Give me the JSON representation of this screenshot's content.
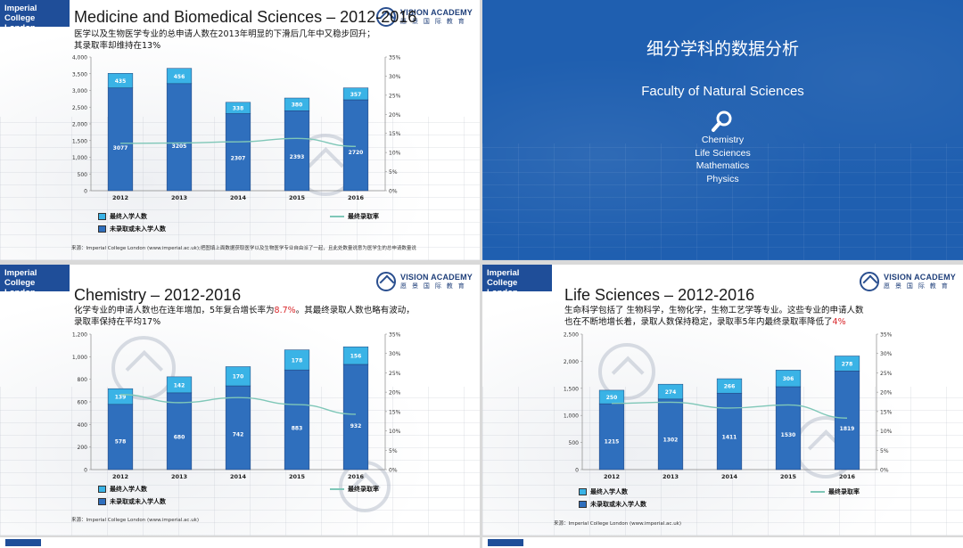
{
  "slides": {
    "medicine": {
      "brand": [
        "Imperial College",
        "London"
      ],
      "logo_en": "VISION ACADEMY",
      "logo_cn": "愿 景 国 际 教 育",
      "title": "Medicine and Biomedical Sciences – 2012-2016",
      "subtitle_line1": "医学以及生物医学专业的总申请人数在2013年明显的下滑后几年中又稳步回升；",
      "subtitle_line2": "其录取率却维持在13%",
      "legend_admitted": "最终入学人数",
      "legend_rejected": "未录取或未入学人数",
      "legend_rate": "最终录取率",
      "source": "来源：Imperial College London (www.imperial.ac.uk);把图填上面数据获取医学以及生物医学专业自由派了一起，且此处数量说意为医学生的总申请数量说"
    },
    "section": {
      "title": "细分学科的数据分析",
      "faculty": "Faculty of Natural Sciences",
      "icon": "magnifier-icon",
      "subjects": [
        "Chemistry",
        "Life Sciences",
        "Mathematics",
        "Physics"
      ]
    },
    "chemistry": {
      "brand": [
        "Imperial College",
        "London"
      ],
      "logo_en": "VISION ACADEMY",
      "logo_cn": "愿 景 国 际 教 育",
      "title": "Chemistry – 2012-2016",
      "subtitle_pre": "化学专业的申请人数也在连年增加，5年复合增长率为",
      "subtitle_hl": "8.7%",
      "subtitle_post": "。其最终录取人数也略有波动，",
      "subtitle_line2": "录取率保持在平均17%",
      "legend_admitted": "最终入学人数",
      "legend_rejected": "未录取或未入学人数",
      "legend_rate": "最终录取率",
      "source": "来源：Imperial College London (www.imperial.ac.uk)"
    },
    "life": {
      "brand": [
        "Imperial College",
        "London"
      ],
      "logo_en": "VISION ACADEMY",
      "logo_cn": "愿 景 国 际 教 育",
      "title": "Life Sciences – 2012-2016",
      "subtitle_line1": "生命科学包括了 生物科学，生物化学，生物工艺学等专业。这些专业的申请人数",
      "subtitle_pre2": "也在不断地增长着，录取人数保持稳定，录取率5年内最终录取率降低了",
      "subtitle_hl": "4%",
      "legend_admitted": "最终入学人数",
      "legend_rejected": "未录取或未入学人数",
      "legend_rate": "最终录取率",
      "source": "来源：Imperial College London (www.imperial.ac.uk)"
    }
  },
  "colors": {
    "admitted": "#3ab3e6",
    "rejected": "#2f6fbd",
    "rate": "#7fc7b8",
    "blue_slide": "#1f5fb0"
  },
  "chart_data": [
    {
      "type": "bar",
      "title": "Medicine and Biomedical Sciences – 2012-2016",
      "categories": [
        "2012",
        "2013",
        "2014",
        "2015",
        "2016"
      ],
      "series": [
        {
          "name": "未录取或未入学人数",
          "values": [
            3077,
            3205,
            2307,
            2393,
            2720
          ]
        },
        {
          "name": "最终入学人数",
          "values": [
            435,
            456,
            338,
            380,
            357
          ]
        },
        {
          "name": "最终录取率",
          "values": [
            12.4,
            12.5,
            12.8,
            13.7,
            11.6
          ]
        }
      ],
      "ylim": [
        0,
        4000
      ],
      "y_ticks": [
        "0",
        "500",
        "1,000",
        "1,500",
        "2,000",
        "2,500",
        "3,000",
        "3,500",
        "4,000"
      ],
      "y2lim": [
        0,
        35
      ],
      "y2_ticks": [
        "0%",
        "5%",
        "10%",
        "15%",
        "20%",
        "25%",
        "30%",
        "35%"
      ],
      "stacked": true,
      "rate_axis": "secondary"
    },
    {
      "type": "bar",
      "title": "Chemistry – 2012-2016",
      "categories": [
        "2012",
        "2013",
        "2014",
        "2015",
        "2016"
      ],
      "series": [
        {
          "name": "未录取或未入学人数",
          "values": [
            578,
            680,
            742,
            883,
            932
          ]
        },
        {
          "name": "最终入学人数",
          "values": [
            139,
            142,
            170,
            178,
            156
          ]
        },
        {
          "name": "最终录取率",
          "values": [
            19.4,
            17.3,
            18.6,
            16.8,
            14.3
          ]
        }
      ],
      "ylim": [
        0,
        1200
      ],
      "y_ticks": [
        "0",
        "200",
        "400",
        "600",
        "800",
        "1,000",
        "1,200"
      ],
      "y2lim": [
        0,
        35
      ],
      "y2_ticks": [
        "0%",
        "5%",
        "10%",
        "15%",
        "20%",
        "25%",
        "30%",
        "35%"
      ],
      "stacked": true,
      "rate_axis": "secondary"
    },
    {
      "type": "bar",
      "title": "Life Sciences – 2012-2016",
      "categories": [
        "2012",
        "2013",
        "2014",
        "2015",
        "2016"
      ],
      "series": [
        {
          "name": "未录取或未入学人数",
          "values": [
            1215,
            1302,
            1411,
            1530,
            1819
          ]
        },
        {
          "name": "最终入学人数",
          "values": [
            250,
            274,
            266,
            306,
            278
          ]
        },
        {
          "name": "最终录取率",
          "values": [
            17.1,
            17.4,
            15.9,
            16.7,
            13.3
          ]
        }
      ],
      "ylim": [
        0,
        2500
      ],
      "y_ticks": [
        "0",
        "500",
        "1,000",
        "1,500",
        "2,000",
        "2,500"
      ],
      "y2lim": [
        0,
        35
      ],
      "y2_ticks": [
        "0%",
        "5%",
        "10%",
        "15%",
        "20%",
        "25%",
        "30%",
        "35%"
      ],
      "stacked": true,
      "rate_axis": "secondary"
    }
  ]
}
